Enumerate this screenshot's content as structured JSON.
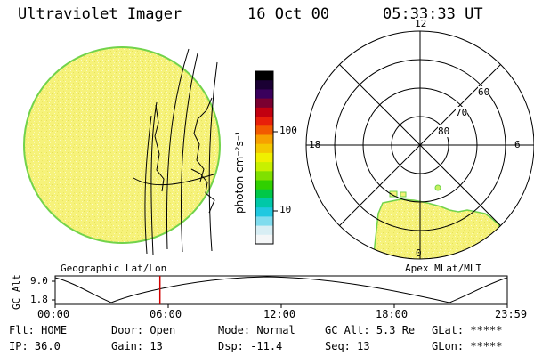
{
  "header": {
    "title": "Ultraviolet Imager",
    "date": "16 Oct 00",
    "time": "05:33:33 UT"
  },
  "colorbar": {
    "unit_label": "photon cm⁻²s⁻¹",
    "ticks": [
      "100",
      "10"
    ],
    "colors": [
      "#000000",
      "#1a0033",
      "#3a005c",
      "#7a0030",
      "#c20010",
      "#e8200a",
      "#f25a00",
      "#f7a000",
      "#f4c800",
      "#f0f000",
      "#c8f000",
      "#80e000",
      "#30d000",
      "#00c848",
      "#00c8a8",
      "#20c8e0",
      "#80dcee",
      "#d8eef4",
      "#f4f6f7"
    ]
  },
  "left_map": {
    "caption": "Geographic Lat/Lon",
    "fill_color": "#f6f27a",
    "edge_color": "#72d34b"
  },
  "polar_plot": {
    "caption": "Apex MLat/MLT",
    "mlt_labels": {
      "top": "12",
      "left": "18",
      "right": "6",
      "bottom": "0"
    },
    "lat_labels": [
      "60",
      "70",
      "80"
    ]
  },
  "timeline": {
    "y_label": "GC Alt",
    "y_ticks": [
      "9.0",
      "1.8"
    ],
    "x_ticks": [
      "00:00",
      "06:00",
      "12:00",
      "18:00",
      "23:59"
    ],
    "cursor_hour": 5.56,
    "cursor_color": "#d00000"
  },
  "status": {
    "row1": [
      {
        "label": "Flt:",
        "value": "HOME"
      },
      {
        "label": "Door:",
        "value": "Open"
      },
      {
        "label": "Mode:",
        "value": "Normal"
      },
      {
        "label": "GC Alt:",
        "value": "5.3 Re"
      },
      {
        "label": "GLat:",
        "value": "*****"
      }
    ],
    "row2": [
      {
        "label": "IP:",
        "value": "36.0"
      },
      {
        "label": "Gain:",
        "value": "13"
      },
      {
        "label": "Dsp:",
        "value": "-11.4"
      },
      {
        "label": "Seq:",
        "value": "13"
      },
      {
        "label": "GLon:",
        "value": "*****"
      }
    ]
  }
}
